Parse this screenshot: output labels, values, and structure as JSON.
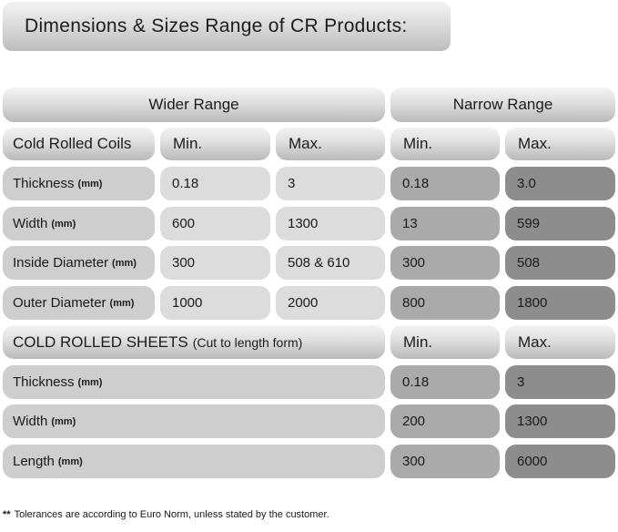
{
  "title": "Dimensions & Sizes Range of CR Products:",
  "headers": {
    "wider": "Wider Range",
    "narrow": "Narrow Range"
  },
  "coils": {
    "label": "Cold Rolled Coils",
    "min": "Min.",
    "max": "Max.",
    "nmin": "Min.",
    "nmax": "Max.",
    "rows": [
      {
        "name": "Thickness",
        "unit": "(mm)",
        "wmin": "0.18",
        "wmax": "3",
        "nmin": "0.18",
        "nmax": "3.0"
      },
      {
        "name": "Width",
        "unit": "(mm)",
        "wmin": "600",
        "wmax": "1300",
        "nmin": "13",
        "nmax": "599"
      },
      {
        "name": "Inside Diameter",
        "unit": "(mm)",
        "wmin": "300",
        "wmax": "508 & 610",
        "nmin": "300",
        "nmax": "508"
      },
      {
        "name": "Outer Diameter",
        "unit": "(mm)",
        "wmin": "1000",
        "wmax": "2000",
        "nmin": "800",
        "nmax": "1800"
      }
    ]
  },
  "sheets": {
    "label": "COLD ROLLED SHEETS",
    "sublabel": "(Cut to length form)",
    "min": "Min.",
    "max": "Max.",
    "rows": [
      {
        "name": "Thickness",
        "unit": "(mm)",
        "min": "0.18",
        "max": "3"
      },
      {
        "name": "Width",
        "unit": "(mm)",
        "min": "200",
        "max": "1300"
      },
      {
        "name": "Length",
        "unit": "(mm)",
        "min": "300",
        "max": "6000"
      }
    ]
  },
  "note": {
    "marker": "**",
    "text": "Tolerances are according to Euro Norm, unless stated by the customer."
  }
}
